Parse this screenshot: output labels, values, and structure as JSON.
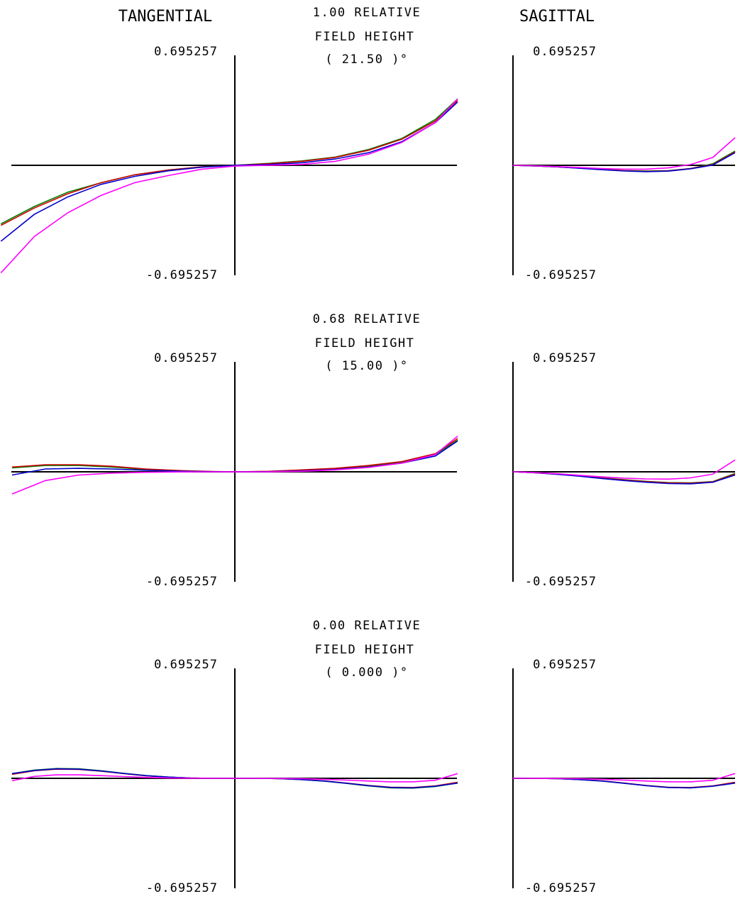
{
  "headers": {
    "tangential": "TANGENTIAL",
    "sagittal": "SAGITTAL"
  },
  "colors": {
    "axis": "#000000",
    "series": [
      "#008000",
      "#cc0000",
      "#0000cc",
      "#ff00ff"
    ]
  },
  "chart_data": {
    "type": "line",
    "ylim": [
      -0.695257,
      0.695257
    ],
    "xlim": [
      -1,
      1
    ],
    "grid": false,
    "panels": [
      {
        "field_line1": "1.00  RELATIVE",
        "field_line2": "FIELD HEIGHT",
        "field_line3": "( 21.50 )°",
        "ymax_label": "0.695257",
        "ymin_label": "-0.695257",
        "tangential": {
          "x": [
            -1.05,
            -0.9,
            -0.75,
            -0.6,
            -0.45,
            -0.3,
            -0.15,
            0,
            0.15,
            0.3,
            0.45,
            0.6,
            0.75,
            0.9,
            1.0
          ],
          "series": [
            {
              "values": [
                -0.37,
                -0.26,
                -0.17,
                -0.11,
                -0.06,
                -0.03,
                -0.01,
                0,
                0.012,
                0.028,
                0.052,
                0.1,
                0.17,
                0.29,
                0.42
              ]
            },
            {
              "values": [
                -0.38,
                -0.27,
                -0.18,
                -0.11,
                -0.06,
                -0.03,
                -0.01,
                0,
                0.01,
                0.025,
                0.05,
                0.095,
                0.165,
                0.28,
                0.41
              ]
            },
            {
              "values": [
                -0.48,
                -0.31,
                -0.2,
                -0.12,
                -0.07,
                -0.035,
                -0.012,
                0,
                0.005,
                0.016,
                0.04,
                0.08,
                0.15,
                0.27,
                0.4
              ]
            },
            {
              "values": [
                -0.68,
                -0.45,
                -0.3,
                -0.19,
                -0.11,
                -0.065,
                -0.025,
                -0.005,
                0,
                0.006,
                0.025,
                0.07,
                0.145,
                0.27,
                0.42
              ]
            }
          ]
        },
        "sagittal": {
          "x": [
            0,
            0.1,
            0.2,
            0.3,
            0.4,
            0.5,
            0.6,
            0.7,
            0.8,
            0.9,
            1.0
          ],
          "series": [
            {
              "values": [
                0,
                -0.004,
                -0.01,
                -0.018,
                -0.026,
                -0.033,
                -0.036,
                -0.034,
                -0.02,
                0.01,
                0.09
              ]
            },
            {
              "values": [
                0,
                -0.004,
                -0.01,
                -0.018,
                -0.026,
                -0.034,
                -0.038,
                -0.035,
                -0.02,
                0.005,
                0.085
              ]
            },
            {
              "values": [
                0,
                -0.004,
                -0.01,
                -0.019,
                -0.028,
                -0.036,
                -0.04,
                -0.037,
                -0.022,
                0.002,
                0.08
              ]
            },
            {
              "values": [
                0,
                -0.003,
                -0.008,
                -0.014,
                -0.02,
                -0.024,
                -0.024,
                -0.016,
                0.005,
                0.05,
                0.175
              ]
            }
          ]
        }
      },
      {
        "field_line1": "0.68  RELATIVE",
        "field_line2": "FIELD HEIGHT",
        "field_line3": "( 15.00 )°",
        "ymax_label": "0.695257",
        "ymin_label": "-0.695257",
        "tangential": {
          "x": [
            -1.0,
            -0.85,
            -0.7,
            -0.55,
            -0.4,
            -0.25,
            -0.1,
            0,
            0.15,
            0.3,
            0.45,
            0.6,
            0.75,
            0.9,
            1.0
          ],
          "series": [
            {
              "values": [
                0.025,
                0.04,
                0.04,
                0.03,
                0.015,
                0.006,
                0.001,
                0,
                0.002,
                0.01,
                0.018,
                0.035,
                0.06,
                0.11,
                0.2
              ]
            },
            {
              "values": [
                0.03,
                0.045,
                0.045,
                0.035,
                0.018,
                0.008,
                0.002,
                0,
                0.003,
                0.012,
                0.022,
                0.04,
                0.065,
                0.115,
                0.21
              ]
            },
            {
              "values": [
                -0.02,
                0.018,
                0.022,
                0.018,
                0.01,
                0.004,
                0.001,
                0,
                0.001,
                0.006,
                0.015,
                0.03,
                0.055,
                0.1,
                0.195
              ]
            },
            {
              "values": [
                -0.14,
                -0.055,
                -0.02,
                -0.008,
                -0.003,
                -0.001,
                0,
                0,
                0,
                0.003,
                0.012,
                0.028,
                0.055,
                0.11,
                0.225
              ]
            }
          ]
        },
        "sagittal": {
          "x": [
            0,
            0.1,
            0.2,
            0.3,
            0.4,
            0.5,
            0.6,
            0.7,
            0.8,
            0.9,
            1.0
          ],
          "series": [
            {
              "values": [
                0,
                -0.006,
                -0.015,
                -0.026,
                -0.038,
                -0.05,
                -0.06,
                -0.068,
                -0.07,
                -0.062,
                -0.01
              ]
            },
            {
              "values": [
                0,
                -0.006,
                -0.015,
                -0.027,
                -0.04,
                -0.052,
                -0.062,
                -0.07,
                -0.072,
                -0.063,
                -0.015
              ]
            },
            {
              "values": [
                0,
                -0.006,
                -0.016,
                -0.028,
                -0.042,
                -0.055,
                -0.066,
                -0.074,
                -0.076,
                -0.066,
                -0.02
              ]
            },
            {
              "values": [
                0,
                -0.005,
                -0.012,
                -0.022,
                -0.032,
                -0.04,
                -0.045,
                -0.046,
                -0.038,
                -0.015,
                0.075
              ]
            }
          ]
        }
      },
      {
        "field_line1": "0.00  RELATIVE",
        "field_line2": "FIELD HEIGHT",
        "field_line3": "( 0.000 )°",
        "ymax_label": "0.695257",
        "ymin_label": "-0.695257",
        "tangential": {
          "x": [
            -1.0,
            -0.9,
            -0.8,
            -0.7,
            -0.6,
            -0.5,
            -0.4,
            -0.3,
            -0.2,
            -0.1,
            0,
            0.1,
            0.2,
            0.3,
            0.4,
            0.5,
            0.6,
            0.7,
            0.8,
            0.9,
            1.0
          ],
          "series": [
            {
              "values": [
                0.03,
                0.052,
                0.062,
                0.06,
                0.048,
                0.032,
                0.018,
                0.008,
                0.002,
                0,
                0,
                0,
                -0.002,
                -0.008,
                -0.018,
                -0.032,
                -0.048,
                -0.06,
                -0.062,
                -0.052,
                -0.03
              ]
            },
            {
              "values": [
                0.025,
                0.048,
                0.058,
                0.056,
                0.045,
                0.03,
                0.016,
                0.007,
                0.002,
                0,
                0,
                0,
                -0.002,
                -0.007,
                -0.016,
                -0.03,
                -0.045,
                -0.056,
                -0.058,
                -0.048,
                -0.025
              ]
            },
            {
              "values": [
                0.03,
                0.05,
                0.06,
                0.058,
                0.046,
                0.031,
                0.017,
                0.008,
                0.002,
                0,
                0,
                0,
                -0.002,
                -0.008,
                -0.017,
                -0.031,
                -0.046,
                -0.058,
                -0.06,
                -0.05,
                -0.03
              ]
            },
            {
              "values": [
                -0.015,
                0.012,
                0.022,
                0.022,
                0.017,
                0.011,
                0.006,
                0.002,
                0.001,
                0,
                0,
                0,
                -0.001,
                -0.002,
                -0.006,
                -0.011,
                -0.017,
                -0.022,
                -0.022,
                -0.012,
                0.03
              ]
            }
          ]
        },
        "sagittal": {
          "x": [
            0,
            0.1,
            0.2,
            0.3,
            0.4,
            0.5,
            0.6,
            0.7,
            0.8,
            0.9,
            1.0
          ],
          "series": [
            {
              "values": [
                0,
                0,
                -0.002,
                -0.008,
                -0.017,
                -0.031,
                -0.046,
                -0.058,
                -0.06,
                -0.05,
                -0.03
              ]
            },
            {
              "values": [
                0,
                0,
                -0.002,
                -0.007,
                -0.016,
                -0.03,
                -0.045,
                -0.056,
                -0.058,
                -0.048,
                -0.025
              ]
            },
            {
              "values": [
                0,
                0,
                -0.002,
                -0.008,
                -0.017,
                -0.031,
                -0.046,
                -0.058,
                -0.06,
                -0.05,
                -0.03
              ]
            },
            {
              "values": [
                0,
                0,
                -0.001,
                -0.002,
                -0.006,
                -0.011,
                -0.017,
                -0.022,
                -0.022,
                -0.012,
                0.03
              ]
            }
          ]
        }
      }
    ]
  }
}
